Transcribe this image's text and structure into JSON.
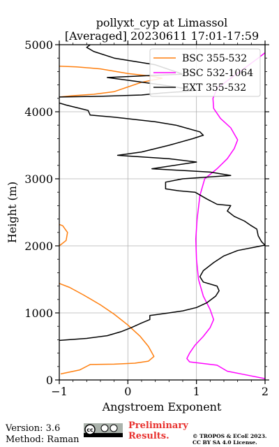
{
  "chart_data": {
    "type": "line",
    "title": [
      "pollyxt_cyp at Limassol",
      "[Averaged] 20230611 17:01-17:59"
    ],
    "xlabel": "Angstroem Exponent",
    "ylabel": "Height (m)",
    "xlim": [
      -1,
      2
    ],
    "ylim": [
      0,
      5000
    ],
    "xticks": [
      "−1",
      "0",
      "1",
      "2"
    ],
    "yticks": [
      "0",
      "1000",
      "2000",
      "3000",
      "4000",
      "5000"
    ],
    "xtick_values": [
      -1,
      0,
      1,
      2
    ],
    "ytick_values": [
      0,
      1000,
      2000,
      3000,
      4000,
      5000
    ],
    "grid": true,
    "legend_position": "top-right",
    "series": [
      {
        "name": "BSC 355-532",
        "color": "#ff7f0e",
        "segments": [
          [
            [
              -0.98,
              90
            ],
            [
              -0.7,
              150
            ],
            [
              -0.55,
              230
            ],
            [
              -0.2,
              235
            ],
            [
              0.1,
              250
            ],
            [
              0.3,
              280
            ],
            [
              0.38,
              350
            ],
            [
              0.3,
              500
            ],
            [
              0.18,
              650
            ],
            [
              0.0,
              820
            ],
            [
              -0.2,
              980
            ],
            [
              -0.4,
              1120
            ],
            [
              -0.65,
              1270
            ],
            [
              -0.85,
              1380
            ],
            [
              -1.0,
              1440
            ]
          ],
          [
            [
              -1.0,
              2000
            ],
            [
              -0.9,
              2080
            ],
            [
              -0.88,
              2200
            ],
            [
              -0.95,
              2300
            ],
            [
              -1.0,
              2320
            ]
          ],
          [
            [
              -1.0,
              4220
            ],
            [
              -0.8,
              4240
            ],
            [
              -0.5,
              4260
            ],
            [
              -0.2,
              4300
            ],
            [
              0.0,
              4370
            ],
            [
              0.2,
              4440
            ],
            [
              0.5,
              4500
            ],
            [
              0.35,
              4530
            ],
            [
              0.0,
              4570
            ],
            [
              -0.4,
              4640
            ],
            [
              -0.75,
              4670
            ],
            [
              -1.0,
              4680
            ]
          ]
        ]
      },
      {
        "name": "BSC 532-1064",
        "color": "#ff00ff",
        "segments": [
          [
            [
              2.0,
              20
            ],
            [
              1.7,
              80
            ],
            [
              1.45,
              130
            ],
            [
              1.3,
              220
            ],
            [
              1.1,
              245
            ],
            [
              0.9,
              270
            ],
            [
              0.86,
              320
            ],
            [
              0.9,
              400
            ],
            [
              0.98,
              520
            ],
            [
              1.1,
              650
            ],
            [
              1.2,
              780
            ],
            [
              1.25,
              900
            ],
            [
              1.2,
              1050
            ],
            [
              1.1,
              1250
            ],
            [
              1.03,
              1500
            ],
            [
              1.0,
              1800
            ],
            [
              0.99,
              2100
            ],
            [
              1.01,
              2400
            ],
            [
              1.05,
              2750
            ],
            [
              1.12,
              3000
            ],
            [
              1.3,
              3150
            ],
            [
              1.45,
              3300
            ],
            [
              1.55,
              3450
            ],
            [
              1.6,
              3580
            ],
            [
              1.5,
              3760
            ],
            [
              1.35,
              3900
            ],
            [
              1.25,
              4050
            ],
            [
              1.24,
              4200
            ],
            [
              1.3,
              4350
            ],
            [
              1.5,
              4500
            ],
            [
              1.7,
              4650
            ],
            [
              1.9,
              4800
            ],
            [
              2.0,
              4880
            ]
          ]
        ]
      },
      {
        "name": "EXT 355-532",
        "color": "#000000",
        "segments": [
          [
            [
              -1.0,
              590
            ],
            [
              -0.6,
              620
            ],
            [
              -0.3,
              660
            ],
            [
              -0.1,
              720
            ],
            [
              0.05,
              780
            ],
            [
              0.2,
              850
            ],
            [
              0.32,
              900
            ],
            [
              0.32,
              960
            ],
            [
              0.6,
              1000
            ],
            [
              0.8,
              1030
            ],
            [
              1.0,
              1080
            ],
            [
              1.15,
              1150
            ],
            [
              1.28,
              1250
            ],
            [
              1.33,
              1330
            ],
            [
              1.3,
              1400
            ],
            [
              1.1,
              1460
            ],
            [
              1.05,
              1540
            ],
            [
              1.1,
              1630
            ],
            [
              1.25,
              1750
            ],
            [
              1.4,
              1850
            ],
            [
              1.6,
              1930
            ],
            [
              1.85,
              1980
            ],
            [
              2.0,
              2010
            ],
            [
              1.95,
              2060
            ],
            [
              1.9,
              2150
            ],
            [
              1.88,
              2250
            ],
            [
              1.8,
              2300
            ],
            [
              1.7,
              2370
            ],
            [
              1.55,
              2440
            ],
            [
              1.45,
              2520
            ],
            [
              1.5,
              2600
            ],
            [
              1.3,
              2620
            ],
            [
              1.15,
              2700
            ],
            [
              0.98,
              2800
            ],
            [
              0.75,
              2820
            ],
            [
              0.55,
              2850
            ],
            [
              0.55,
              2950
            ],
            [
              0.8,
              3000
            ],
            [
              1.5,
              3050
            ],
            [
              1.2,
              3100
            ],
            [
              0.35,
              3150
            ],
            [
              1.0,
              3250
            ],
            [
              0.6,
              3300
            ],
            [
              -0.15,
              3350
            ],
            [
              0.2,
              3400
            ],
            [
              0.6,
              3500
            ],
            [
              0.95,
              3600
            ],
            [
              1.1,
              3650
            ],
            [
              1.05,
              3700
            ],
            [
              0.7,
              3800
            ],
            [
              0.4,
              3850
            ],
            [
              -0.2,
              3920
            ],
            [
              -0.55,
              3950
            ],
            [
              -0.58,
              4020
            ],
            [
              -0.9,
              4100
            ],
            [
              -1.0,
              4130
            ]
          ],
          [
            [
              -1.0,
              4220
            ],
            [
              -0.4,
              4230
            ],
            [
              0.2,
              4250
            ],
            [
              0.5,
              4280
            ],
            [
              0.8,
              4300
            ],
            [
              1.0,
              4320
            ],
            [
              0.5,
              4400
            ],
            [
              0.0,
              4470
            ],
            [
              -0.3,
              4510
            ],
            [
              0.3,
              4540
            ],
            [
              0.8,
              4560
            ],
            [
              0.4,
              4700
            ],
            [
              -0.2,
              4800
            ],
            [
              -0.5,
              4900
            ],
            [
              -0.6,
              4960
            ],
            [
              -0.55,
              5000
            ]
          ]
        ]
      }
    ]
  },
  "footer": {
    "version": "Version: 3.6",
    "method": "Method: Raman",
    "preliminary_line1": "Preliminary",
    "preliminary_line2": "Results.",
    "copyright_line1": "© TROPOS & ECoE 2023.",
    "copyright_line2": "CC BY SA 4.0 License.",
    "license_badge": "cc-by-sa-icon"
  }
}
